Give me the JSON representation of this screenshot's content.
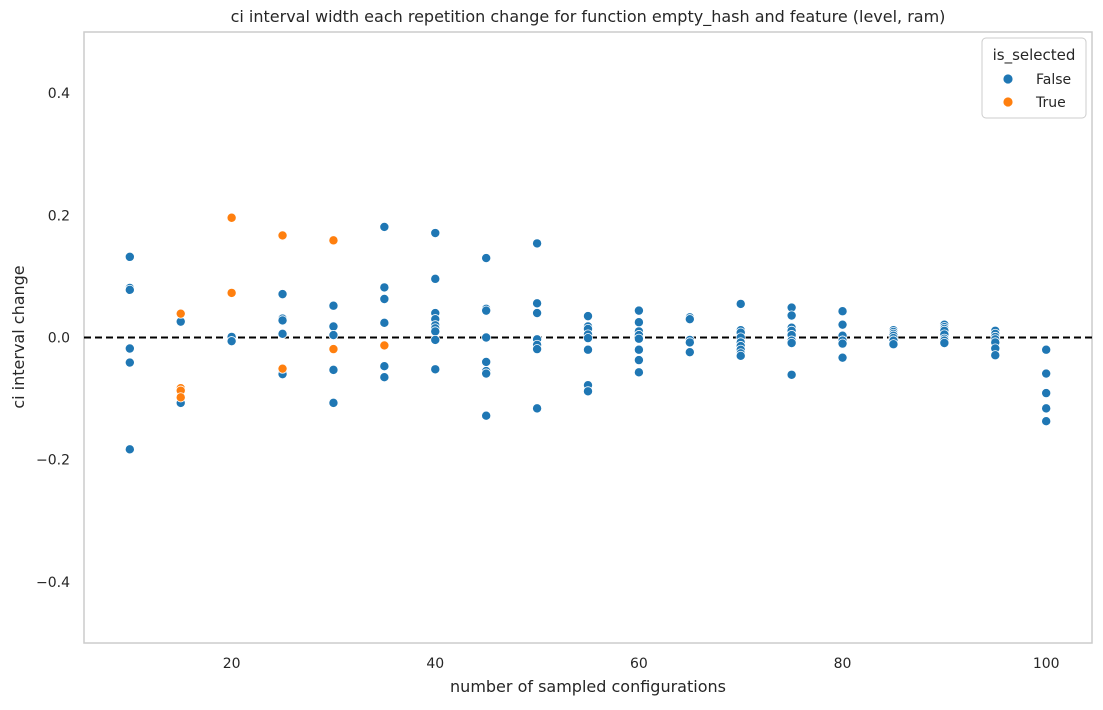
{
  "chart_data": {
    "type": "scatter",
    "title": "ci interval width each repetition change for function empty_hash and feature (level, ram)",
    "xlabel": "number of sampled configurations",
    "ylabel": "ci interval change",
    "xlim": [
      5.5,
      104.5
    ],
    "ylim": [
      -0.5,
      0.5
    ],
    "x_ticks": [
      20,
      40,
      60,
      80,
      100
    ],
    "y_ticks": [
      0.4,
      0.2,
      0.0,
      -0.2,
      -0.4
    ],
    "x_tick_labels": [
      "20",
      "40",
      "60",
      "80",
      "100"
    ],
    "y_tick_labels": [
      "0.4",
      "0.2",
      "0.0",
      "−0.2",
      "−0.4"
    ],
    "grid": false,
    "reference_line": {
      "y": 0.0,
      "style": "dashed",
      "color": "#000000"
    },
    "legend": {
      "title": "is_selected",
      "placement": "top-right",
      "entries": [
        {
          "label": "False",
          "color": "#1f77b4"
        },
        {
          "label": "True",
          "color": "#ff7f0e"
        }
      ]
    },
    "series": [
      {
        "name": "False",
        "color": "#1f77b4",
        "points": [
          [
            10,
            0.132
          ],
          [
            10,
            0.081
          ],
          [
            10,
            0.078
          ],
          [
            10,
            -0.018
          ],
          [
            10,
            -0.041
          ],
          [
            10,
            -0.183
          ],
          [
            15,
            0.026
          ],
          [
            15,
            -0.107
          ],
          [
            20,
            0.001
          ],
          [
            20,
            -0.006
          ],
          [
            25,
            0.071
          ],
          [
            25,
            0.031
          ],
          [
            25,
            0.028
          ],
          [
            25,
            0.006
          ],
          [
            25,
            -0.055
          ],
          [
            25,
            -0.06
          ],
          [
            30,
            0.052
          ],
          [
            30,
            0.018
          ],
          [
            30,
            0.004
          ],
          [
            30,
            -0.053
          ],
          [
            30,
            -0.107
          ],
          [
            35,
            0.181
          ],
          [
            35,
            0.082
          ],
          [
            35,
            0.063
          ],
          [
            35,
            0.024
          ],
          [
            35,
            -0.047
          ],
          [
            35,
            -0.065
          ],
          [
            40,
            0.171
          ],
          [
            40,
            0.096
          ],
          [
            40,
            0.04
          ],
          [
            40,
            0.03
          ],
          [
            40,
            0.02
          ],
          [
            40,
            0.015
          ],
          [
            40,
            0.01
          ],
          [
            40,
            -0.004
          ],
          [
            40,
            -0.052
          ],
          [
            45,
            0.13
          ],
          [
            45,
            0.047
          ],
          [
            45,
            0.044
          ],
          [
            45,
            0.0
          ],
          [
            45,
            -0.04
          ],
          [
            45,
            -0.055
          ],
          [
            45,
            -0.059
          ],
          [
            45,
            -0.128
          ],
          [
            50,
            0.154
          ],
          [
            50,
            0.056
          ],
          [
            50,
            0.04
          ],
          [
            50,
            -0.003
          ],
          [
            50,
            -0.012
          ],
          [
            50,
            -0.019
          ],
          [
            50,
            -0.116
          ],
          [
            55,
            0.035
          ],
          [
            55,
            0.018
          ],
          [
            55,
            0.014
          ],
          [
            55,
            0.005
          ],
          [
            55,
            -0.001
          ],
          [
            55,
            -0.02
          ],
          [
            55,
            -0.078
          ],
          [
            55,
            -0.088
          ],
          [
            60,
            0.044
          ],
          [
            60,
            0.025
          ],
          [
            60,
            0.01
          ],
          [
            60,
            0.004
          ],
          [
            60,
            -0.002
          ],
          [
            60,
            -0.02
          ],
          [
            60,
            -0.037
          ],
          [
            60,
            -0.057
          ],
          [
            65,
            0.033
          ],
          [
            65,
            0.03
          ],
          [
            65,
            -0.004
          ],
          [
            65,
            -0.008
          ],
          [
            65,
            -0.024
          ],
          [
            70,
            0.055
          ],
          [
            70,
            0.012
          ],
          [
            70,
            0.008
          ],
          [
            70,
            0.0
          ],
          [
            70,
            -0.008
          ],
          [
            70,
            -0.014
          ],
          [
            70,
            -0.02
          ],
          [
            70,
            -0.026
          ],
          [
            70,
            -0.03
          ],
          [
            75,
            0.049
          ],
          [
            75,
            0.036
          ],
          [
            75,
            0.016
          ],
          [
            75,
            0.011
          ],
          [
            75,
            0.004
          ],
          [
            75,
            -0.005
          ],
          [
            75,
            -0.009
          ],
          [
            75,
            -0.061
          ],
          [
            80,
            0.043
          ],
          [
            80,
            0.021
          ],
          [
            80,
            0.003
          ],
          [
            80,
            -0.005
          ],
          [
            80,
            -0.01
          ],
          [
            80,
            -0.033
          ],
          [
            85,
            0.012
          ],
          [
            85,
            0.009
          ],
          [
            85,
            0.006
          ],
          [
            85,
            0.003
          ],
          [
            85,
            -0.001
          ],
          [
            85,
            -0.005
          ],
          [
            85,
            -0.011
          ],
          [
            90,
            0.021
          ],
          [
            90,
            0.017
          ],
          [
            90,
            0.014
          ],
          [
            90,
            0.011
          ],
          [
            90,
            0.005
          ],
          [
            90,
            -0.002
          ],
          [
            90,
            -0.005
          ],
          [
            90,
            -0.009
          ],
          [
            95,
            0.011
          ],
          [
            95,
            0.006
          ],
          [
            95,
            0.001
          ],
          [
            95,
            -0.003
          ],
          [
            95,
            -0.008
          ],
          [
            95,
            -0.018
          ],
          [
            95,
            -0.029
          ],
          [
            100,
            -0.02
          ],
          [
            100,
            -0.059
          ],
          [
            100,
            -0.091
          ],
          [
            100,
            -0.116
          ],
          [
            100,
            -0.137
          ]
        ]
      },
      {
        "name": "True",
        "color": "#ff7f0e",
        "points": [
          [
            15,
            0.039
          ],
          [
            15,
            -0.083
          ],
          [
            15,
            -0.087
          ],
          [
            15,
            -0.098
          ],
          [
            20,
            0.196
          ],
          [
            20,
            0.073
          ],
          [
            25,
            0.167
          ],
          [
            25,
            -0.051
          ],
          [
            30,
            0.159
          ],
          [
            30,
            -0.019
          ],
          [
            35,
            -0.013
          ]
        ]
      }
    ]
  }
}
